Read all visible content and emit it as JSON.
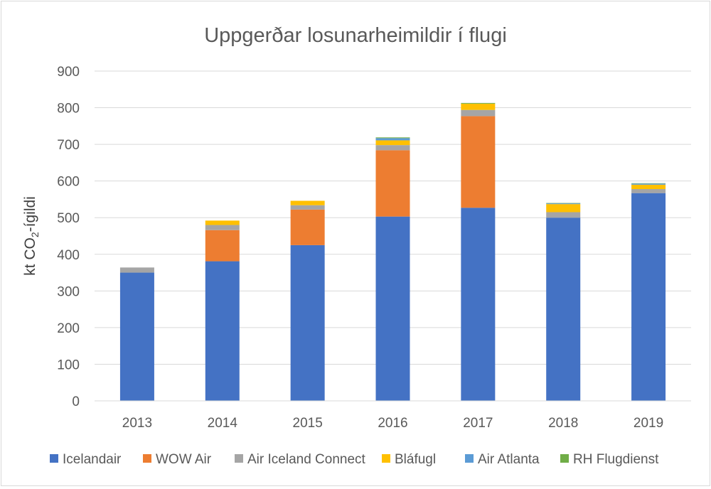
{
  "chart_data": {
    "type": "bar",
    "stacked": true,
    "title": "Uppgerðar losunarheimildir í flugi",
    "ylabel_main": "kt CO",
    "ylabel_sub": "2",
    "ylabel_tail": "-ígildi",
    "xlabel": "",
    "ylim": [
      0,
      900
    ],
    "yticks": [
      0,
      100,
      200,
      300,
      400,
      500,
      600,
      700,
      800,
      900
    ],
    "grid": true,
    "legend_position": "bottom",
    "categories": [
      "2013",
      "2014",
      "2015",
      "2016",
      "2017",
      "2018",
      "2019"
    ],
    "series": [
      {
        "name": "Icelandair",
        "color": "#4472c4",
        "values": [
          350,
          381,
          425,
          503,
          527,
          500,
          567
        ]
      },
      {
        "name": "WOW Air",
        "color": "#ed7d31",
        "values": [
          0,
          85,
          97,
          181,
          250,
          0,
          0
        ]
      },
      {
        "name": "Air Iceland Connect",
        "color": "#a5a5a5",
        "values": [
          14,
          14,
          12,
          14,
          17,
          15,
          11
        ]
      },
      {
        "name": "Bláfugl",
        "color": "#ffc000",
        "values": [
          0,
          12,
          12,
          13,
          17,
          22,
          12
        ]
      },
      {
        "name": "Air Atlanta",
        "color": "#5b9bd5",
        "values": [
          0,
          0,
          0,
          6,
          0,
          2,
          3
        ]
      },
      {
        "name": "RH Flugdienst",
        "color": "#70ad47",
        "values": [
          0,
          0,
          0,
          2,
          2,
          1,
          1
        ]
      }
    ]
  }
}
